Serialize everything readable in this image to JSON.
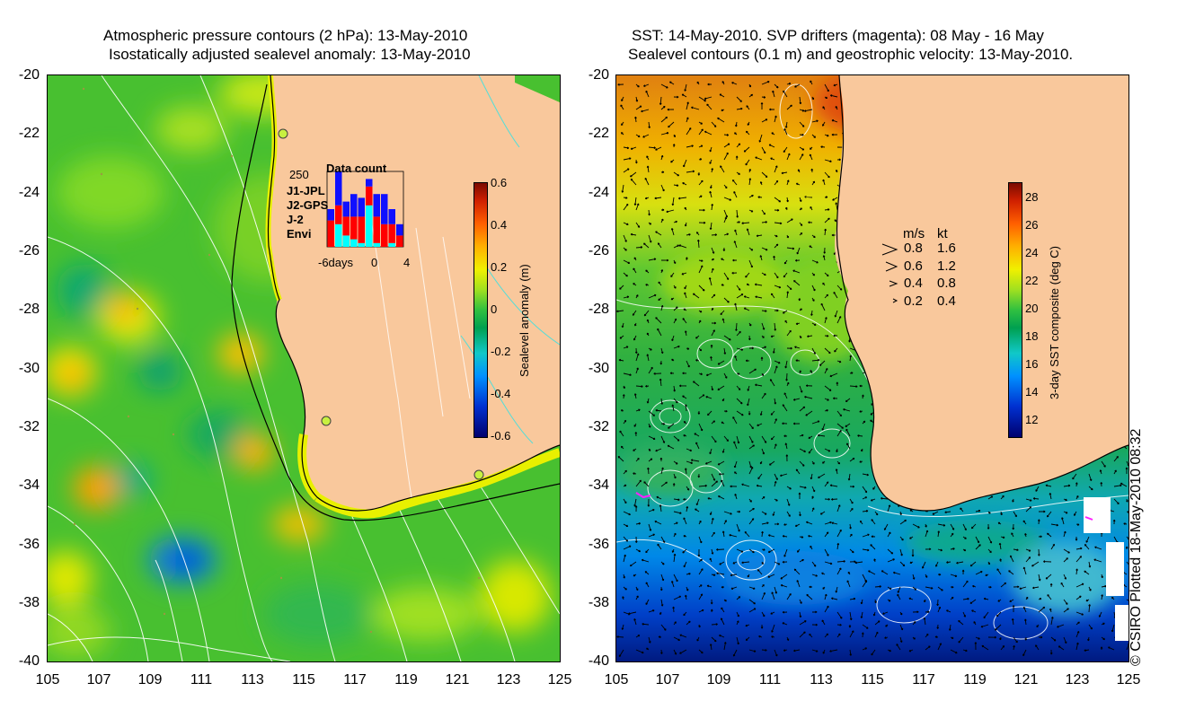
{
  "left_panel": {
    "title_line1": "Atmospheric pressure contours (2 hPa): 13-May-2010",
    "title_line2": "Isostatically adjusted sealevel anomaly: 13-May-2010",
    "colorbar": {
      "title": "Sealevel anomaly (m)",
      "ticks": [
        "0.6",
        "0.4",
        "0.2",
        "0",
        "-0.2",
        "-0.4",
        "-0.6"
      ]
    },
    "data_count": {
      "title": "Data count",
      "max_label": "250",
      "missions": [
        {
          "name": "J1-JPL",
          "color": "#1010ff"
        },
        {
          "name": "J2-GPS",
          "color": "#ff20ff"
        },
        {
          "name": "J-2",
          "color": "#ff0000"
        },
        {
          "name": "Envi",
          "color": "#00ffff"
        }
      ],
      "x_labels": [
        "-6days",
        "0",
        "4"
      ],
      "bars": [
        {
          "day": -6,
          "values": [
            0.15,
            0.0,
            0.35,
            0.0
          ]
        },
        {
          "day": -5,
          "values": [
            0.45,
            0.0,
            0.25,
            0.3
          ]
        },
        {
          "day": -4,
          "values": [
            0.2,
            0.0,
            0.25,
            0.15
          ]
        },
        {
          "day": -3,
          "values": [
            0.3,
            0.0,
            0.3,
            0.1
          ]
        },
        {
          "day": -2,
          "values": [
            0.25,
            0.0,
            0.35,
            0.05
          ]
        },
        {
          "day": -1,
          "values": [
            0.1,
            0.0,
            0.25,
            0.55
          ]
        },
        {
          "day": 0,
          "values": [
            0.3,
            0.0,
            0.35,
            0.05
          ]
        },
        {
          "day": 1,
          "values": [
            0.4,
            0.0,
            0.3,
            0.0
          ]
        },
        {
          "day": 2,
          "values": [
            0.2,
            0.0,
            0.25,
            0.05
          ]
        },
        {
          "day": 3,
          "values": [
            0.15,
            0.0,
            0.15,
            0.0
          ]
        }
      ]
    }
  },
  "right_panel": {
    "title_line1": "SST: 14-May-2010. SVP drifters (magenta): 08 May - 16 May",
    "title_line2": "Sealevel contours (0.1 m) and geostrophic velocity: 13-May-2010.",
    "colorbar": {
      "title": "3-day SST composite (deg C)",
      "ticks": [
        "28",
        "26",
        "24",
        "22",
        "20",
        "18",
        "16",
        "14",
        "12"
      ]
    },
    "velocity_legend": {
      "header_ms": "m/s",
      "header_kt": "kt",
      "rows": [
        {
          "ms": "0.8",
          "kt": "1.6"
        },
        {
          "ms": "0.6",
          "kt": "1.2"
        },
        {
          "ms": "0.4",
          "kt": "0.8"
        },
        {
          "ms": "0.2",
          "kt": "0.4"
        }
      ]
    }
  },
  "axes": {
    "lat_labels": [
      "-20",
      "-22",
      "-24",
      "-26",
      "-28",
      "-30",
      "-32",
      "-34",
      "-36",
      "-38",
      "-40"
    ],
    "lon_labels": [
      "105",
      "107",
      "109",
      "111",
      "113",
      "115",
      "117",
      "119",
      "121",
      "123",
      "125"
    ]
  },
  "credit": "© CSIRO Plotted 18-May-2010 08:32",
  "colors": {
    "land": "#f9c89c",
    "contour": "#ffffff",
    "coast": "#000000"
  }
}
